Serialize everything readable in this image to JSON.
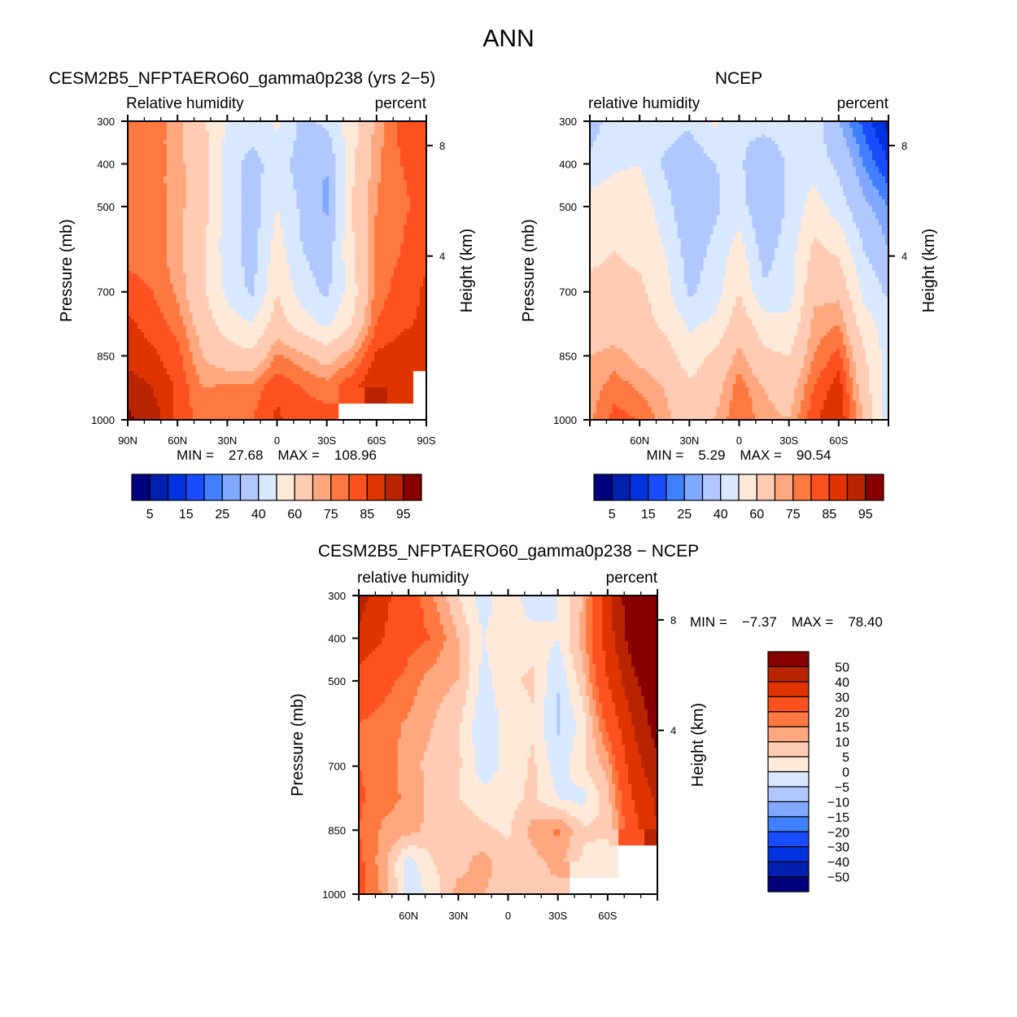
{
  "title": "ANN",
  "chart_data": [
    {
      "type": "heatmap",
      "title": "CESM2B5_NFPTAERO60_gamma0p238 (yrs 2−5)",
      "subtitle_left": "Relative humidity",
      "subtitle_right": "percent",
      "ylabel": "Pressure (mb)",
      "ylabel_right": "Height (km)",
      "x_ticklabels": [
        "90N",
        "60N",
        "30N",
        "0",
        "30S",
        "60S",
        "90S"
      ],
      "y_ticklabels": [
        "300",
        "400",
        "500",
        "700",
        "850",
        "1000"
      ],
      "y_ticks": [
        300,
        400,
        500,
        700,
        850,
        1000
      ],
      "height_ticks": [
        {
          "label": "8",
          "p": 357
        },
        {
          "label": "4",
          "p": 616
        }
      ],
      "min_label": "MIN =",
      "min_value": "27.68",
      "max_label": "MAX =",
      "max_value": "108.96",
      "lat": [
        90,
        75,
        60,
        45,
        30,
        15,
        0,
        -15,
        -30,
        -45,
        -60,
        -75,
        -90
      ],
      "pressure": [
        300,
        400,
        500,
        600,
        700,
        775,
        850,
        925,
        1000
      ],
      "values": [
        [
          78,
          78,
          72,
          62,
          50,
          45,
          52,
          38,
          42,
          55,
          72,
          82,
          82
        ],
        [
          78,
          78,
          72,
          65,
          45,
          36,
          45,
          35,
          30,
          58,
          74,
          80,
          82
        ],
        [
          78,
          78,
          72,
          65,
          45,
          35,
          50,
          38,
          28,
          60,
          75,
          79,
          82
        ],
        [
          78,
          78,
          72,
          62,
          45,
          35,
          55,
          40,
          34,
          58,
          77,
          80,
          84
        ],
        [
          82,
          80,
          74,
          62,
          48,
          38,
          60,
          45,
          38,
          55,
          78,
          82,
          86
        ],
        [
          86,
          83,
          78,
          66,
          55,
          50,
          65,
          55,
          48,
          60,
          80,
          84,
          86
        ],
        [
          88,
          86,
          82,
          70,
          65,
          62,
          76,
          72,
          66,
          74,
          86,
          88,
          86
        ],
        [
          93,
          90,
          84,
          75,
          76,
          77,
          84,
          80,
          78,
          84,
          90,
          88,
          null
        ],
        [
          96,
          93,
          84,
          78,
          78,
          80,
          86,
          82,
          82,
          null,
          null,
          null,
          null
        ]
      ],
      "colorbar": {
        "levels": [
          5,
          10,
          15,
          20,
          25,
          30,
          40,
          50,
          60,
          70,
          75,
          80,
          85,
          90,
          95
        ],
        "labels": [
          "5",
          "15",
          "25",
          "40",
          "60",
          "75",
          "85",
          "95"
        ]
      }
    },
    {
      "type": "heatmap",
      "title": "NCEP",
      "subtitle_left": "relative humidity",
      "subtitle_right": "percent",
      "ylabel": "Pressure (mb)",
      "ylabel_right": "Height (km)",
      "x_ticklabels": [
        "",
        "60N",
        "30N",
        "0",
        "30S",
        "60S",
        ""
      ],
      "y_ticklabels": [
        "300",
        "400",
        "500",
        "700",
        "850",
        "1000"
      ],
      "y_ticks": [
        300,
        400,
        500,
        700,
        850,
        1000
      ],
      "height_ticks": [
        {
          "label": "8",
          "p": 357
        },
        {
          "label": "4",
          "p": 616
        }
      ],
      "min_label": "MIN =",
      "min_value": "5.29",
      "max_label": "MAX =",
      "max_value": "90.54",
      "lat": [
        90,
        75,
        60,
        45,
        30,
        15,
        0,
        -15,
        -30,
        -45,
        -60,
        -75,
        -90
      ],
      "pressure": [
        300,
        400,
        500,
        600,
        700,
        775,
        850,
        925,
        1000
      ],
      "values": [
        [
          35,
          45,
          48,
          45,
          42,
          52,
          42,
          45,
          45,
          45,
          30,
          18,
          8
        ],
        [
          42,
          48,
          50,
          38,
          32,
          40,
          42,
          30,
          42,
          45,
          38,
          25,
          15
        ],
        [
          55,
          58,
          56,
          45,
          30,
          38,
          45,
          30,
          42,
          55,
          45,
          32,
          25
        ],
        [
          58,
          60,
          58,
          50,
          35,
          42,
          55,
          35,
          45,
          62,
          58,
          40,
          30
        ],
        [
          62,
          62,
          62,
          55,
          38,
          45,
          60,
          42,
          46,
          68,
          68,
          48,
          38
        ],
        [
          65,
          66,
          64,
          58,
          48,
          52,
          66,
          55,
          52,
          72,
          75,
          55,
          45
        ],
        [
          70,
          72,
          68,
          65,
          55,
          62,
          72,
          62,
          60,
          75,
          82,
          62,
          45
        ],
        [
          72,
          78,
          74,
          70,
          62,
          66,
          78,
          70,
          66,
          80,
          88,
          65,
          45
        ],
        [
          74,
          82,
          80,
          72,
          66,
          70,
          80,
          72,
          70,
          84,
          90,
          70,
          45
        ]
      ],
      "colorbar": {
        "levels": [
          5,
          10,
          15,
          20,
          25,
          30,
          40,
          50,
          60,
          70,
          75,
          80,
          85,
          90,
          95
        ],
        "labels": [
          "5",
          "15",
          "25",
          "40",
          "60",
          "75",
          "85",
          "95"
        ]
      }
    },
    {
      "type": "heatmap",
      "title": "CESM2B5_NFPTAERO60_gamma0p238 − NCEP",
      "subtitle_left": "relative humidity",
      "subtitle_right": "percent",
      "ylabel": "Pressure (mb)",
      "ylabel_right": "Height (km)",
      "x_ticklabels": [
        "",
        "60N",
        "30N",
        "0",
        "30S",
        "60S",
        ""
      ],
      "y_ticklabels": [
        "300",
        "400",
        "500",
        "700",
        "850",
        "1000"
      ],
      "y_ticks": [
        300,
        400,
        500,
        700,
        850,
        1000
      ],
      "height_ticks": [
        {
          "label": "8",
          "p": 357
        },
        {
          "label": "4",
          "p": 616
        }
      ],
      "min_label": "MIN =",
      "min_value": "−7.37",
      "max_label": "MAX =",
      "max_value": "78.40",
      "lat": [
        90,
        75,
        60,
        45,
        30,
        15,
        0,
        -15,
        -30,
        -45,
        -60,
        -75,
        -90
      ],
      "pressure": [
        300,
        400,
        500,
        600,
        700,
        775,
        850,
        925,
        1000
      ],
      "values": [
        [
          45,
          32,
          25,
          15,
          5,
          -3,
          5,
          -5,
          0,
          10,
          35,
          60,
          75
        ],
        [
          38,
          30,
          22,
          20,
          10,
          0,
          3,
          3,
          0,
          12,
          35,
          55,
          70
        ],
        [
          25,
          22,
          18,
          12,
          10,
          -2,
          4,
          6,
          -5,
          8,
          30,
          47,
          60
        ],
        [
          20,
          18,
          14,
          10,
          6,
          -4,
          2,
          4,
          -6,
          2,
          22,
          40,
          55
        ],
        [
          20,
          18,
          12,
          8,
          6,
          -3,
          2,
          6,
          -3,
          4,
          12,
          35,
          48
        ],
        [
          21,
          17,
          14,
          8,
          5,
          2,
          3,
          6,
          0,
          -2,
          8,
          30,
          42
        ],
        [
          20,
          14,
          12,
          8,
          10,
          6,
          4,
          12,
          16,
          6,
          6,
          26,
          40
        ],
        [
          22,
          12,
          -3,
          5,
          8,
          12,
          7,
          8,
          12,
          4,
          2,
          null,
          null
        ],
        [
          22,
          14,
          -3,
          2,
          12,
          10,
          8,
          8,
          8,
          null,
          null,
          null,
          null
        ]
      ],
      "colorbar": {
        "levels": [
          -50,
          -40,
          -30,
          -20,
          -15,
          -10,
          -5,
          0,
          5,
          10,
          15,
          20,
          30,
          40,
          50
        ],
        "labels": [
          "−50",
          "−40",
          "−30",
          "−20",
          "−15",
          "−10",
          "−5",
          "0",
          "5",
          "10",
          "15",
          "20",
          "30",
          "40",
          "50"
        ]
      }
    }
  ],
  "colors": [
    "#00007f",
    "#0020b0",
    "#0033e0",
    "#1a4cff",
    "#4080ff",
    "#80a8ff",
    "#b0c8ff",
    "#d8e8ff",
    "#ffe9d9",
    "#ffcbb2",
    "#ffa880",
    "#ff7840",
    "#ff5020",
    "#e03400",
    "#b82400",
    "#880000"
  ]
}
